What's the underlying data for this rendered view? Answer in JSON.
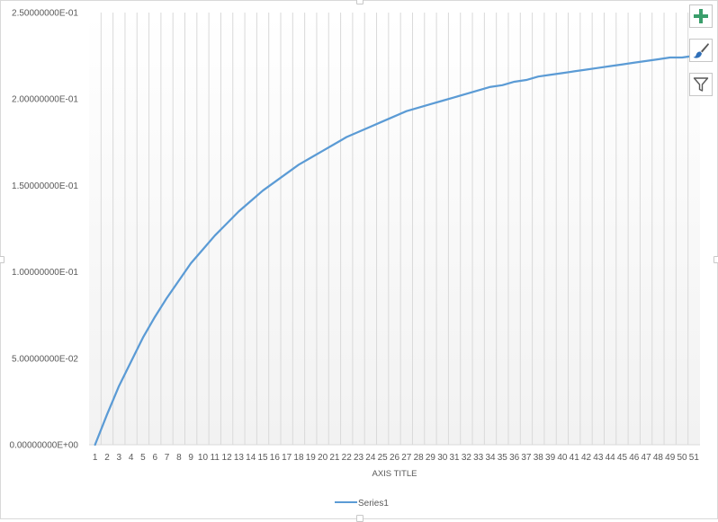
{
  "chart_data": {
    "type": "line",
    "title": "",
    "xlabel": "AXIS TITLE",
    "ylabel": "",
    "categories": [
      "1",
      "2",
      "3",
      "4",
      "5",
      "6",
      "7",
      "8",
      "9",
      "10",
      "11",
      "12",
      "13",
      "14",
      "15",
      "16",
      "17",
      "18",
      "19",
      "20",
      "21",
      "22",
      "23",
      "24",
      "25",
      "26",
      "27",
      "28",
      "29",
      "30",
      "31",
      "32",
      "33",
      "34",
      "35",
      "36",
      "37",
      "38",
      "39",
      "40",
      "41",
      "42",
      "43",
      "44",
      "45",
      "46",
      "47",
      "48",
      "49",
      "50",
      "51"
    ],
    "y_ticks": [
      "0.00000000E+00",
      "5.00000000E-02",
      "1.00000000E-01",
      "1.50000000E-01",
      "2.00000000E-01",
      "2.50000000E-01"
    ],
    "ylim": [
      0,
      0.25
    ],
    "grid": "vertical",
    "legend_position": "bottom",
    "series": [
      {
        "name": "Series1",
        "color": "#5b9bd5",
        "values": [
          0,
          0.0175,
          0.034,
          0.048,
          0.062,
          0.074,
          0.085,
          0.095,
          0.105,
          0.113,
          0.121,
          0.128,
          0.135,
          0.141,
          0.147,
          0.152,
          0.157,
          0.162,
          0.166,
          0.17,
          0.174,
          0.178,
          0.181,
          0.184,
          0.187,
          0.19,
          0.193,
          0.195,
          0.197,
          0.199,
          0.201,
          0.203,
          0.205,
          0.207,
          0.208,
          0.21,
          0.211,
          0.213,
          0.214,
          0.215,
          0.216,
          0.217,
          0.218,
          0.219,
          0.22,
          0.221,
          0.222,
          0.223,
          0.224,
          0.224,
          0.225
        ]
      }
    ]
  },
  "tools": {
    "add_icon": "plus-icon",
    "style_icon": "paintbrush-icon",
    "filter_icon": "funnel-icon",
    "add_color": "#3a9e6b",
    "style_color": "#2f6fb8",
    "filter_color": "#595959"
  }
}
